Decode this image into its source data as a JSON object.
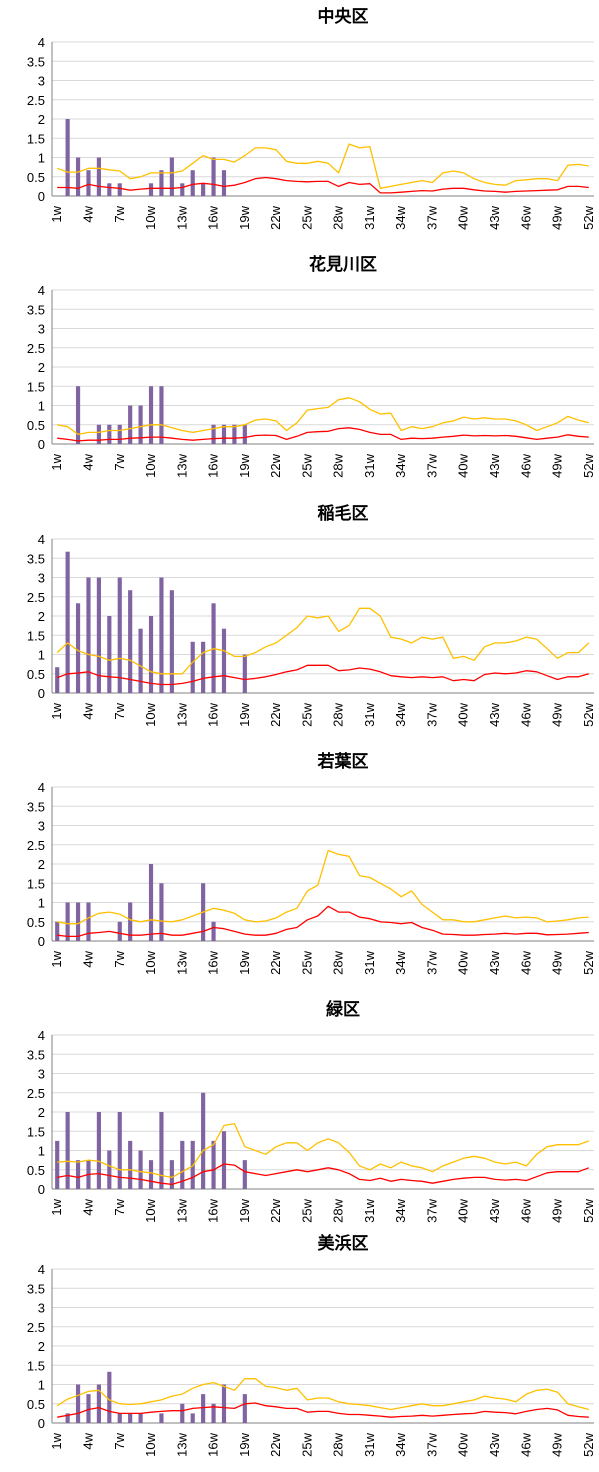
{
  "chart_data": [
    {
      "type": "bar",
      "title": "中央区",
      "ylim": [
        0,
        4
      ],
      "yticks": [
        "0",
        "0.5",
        "1",
        "1.5",
        "2",
        "2.5",
        "3",
        "3.5",
        "4"
      ],
      "grid": true,
      "x_tick_labels": [
        "1w",
        "4w",
        "7w",
        "10w",
        "13w",
        "16w",
        "19w",
        "22w",
        "25w",
        "28w",
        "31w",
        "34w",
        "37w",
        "40w",
        "43w",
        "46w",
        "49w",
        "52w"
      ],
      "bar_color": "#8064a2",
      "bars": [
        0,
        2,
        1,
        0.67,
        1,
        0.33,
        0.33,
        0,
        0,
        0.33,
        0.67,
        1,
        0.33,
        0.67,
        0.33,
        1,
        0.67,
        0,
        0,
        0,
        0,
        0,
        0,
        0,
        0,
        0,
        0,
        0,
        0,
        0,
        0,
        0,
        0,
        0,
        0,
        0,
        0,
        0,
        0,
        0,
        0,
        0,
        0,
        0,
        0,
        0,
        0,
        0,
        0,
        0,
        0,
        0
      ],
      "series": [
        {
          "color": "#ffc000",
          "values": [
            0.72,
            0.62,
            0.62,
            0.72,
            0.72,
            0.68,
            0.65,
            0.45,
            0.5,
            0.6,
            0.6,
            0.6,
            0.65,
            0.85,
            1.05,
            0.95,
            0.95,
            0.88,
            1.05,
            1.25,
            1.25,
            1.2,
            0.9,
            0.85,
            0.85,
            0.9,
            0.85,
            0.6,
            1.35,
            1.25,
            1.28,
            0.2,
            0.25,
            0.3,
            0.35,
            0.4,
            0.35,
            0.6,
            0.65,
            0.6,
            0.45,
            0.35,
            0.3,
            0.28,
            0.4,
            0.42,
            0.45,
            0.45,
            0.4,
            0.8,
            0.82,
            0.78
          ]
        },
        {
          "color": "#ff0000",
          "values": [
            0.22,
            0.22,
            0.2,
            0.3,
            0.25,
            0.22,
            0.2,
            0.15,
            0.18,
            0.2,
            0.2,
            0.2,
            0.22,
            0.3,
            0.33,
            0.3,
            0.25,
            0.28,
            0.35,
            0.45,
            0.48,
            0.45,
            0.4,
            0.38,
            0.37,
            0.38,
            0.38,
            0.25,
            0.35,
            0.3,
            0.32,
            0.08,
            0.08,
            0.1,
            0.12,
            0.14,
            0.13,
            0.18,
            0.2,
            0.2,
            0.16,
            0.13,
            0.12,
            0.1,
            0.12,
            0.13,
            0.14,
            0.15,
            0.16,
            0.25,
            0.25,
            0.22
          ]
        }
      ]
    },
    {
      "type": "bar",
      "title": "花見川区",
      "ylim": [
        0,
        4
      ],
      "yticks": [
        "0",
        "0.5",
        "1",
        "1.5",
        "2",
        "2.5",
        "3",
        "3.5",
        "4"
      ],
      "grid": true,
      "x_tick_labels": [
        "1w",
        "4w",
        "7w",
        "10w",
        "13w",
        "16w",
        "19w",
        "22w",
        "25w",
        "28w",
        "31w",
        "34w",
        "37w",
        "40w",
        "43w",
        "46w",
        "49w",
        "52w"
      ],
      "bar_color": "#8064a2",
      "bars": [
        0,
        0,
        1.5,
        0,
        0.5,
        0.5,
        0.5,
        1,
        1,
        1.5,
        1.5,
        0,
        0,
        0,
        0,
        0.5,
        0.5,
        0.5,
        0.5,
        0,
        0,
        0,
        0,
        0,
        0,
        0,
        0,
        0,
        0,
        0,
        0,
        0,
        0,
        0,
        0,
        0,
        0,
        0,
        0,
        0,
        0,
        0,
        0,
        0,
        0,
        0,
        0,
        0,
        0,
        0,
        0,
        0
      ],
      "series": [
        {
          "color": "#ffc000",
          "values": [
            0.5,
            0.45,
            0.25,
            0.3,
            0.3,
            0.35,
            0.35,
            0.4,
            0.45,
            0.5,
            0.5,
            0.42,
            0.35,
            0.3,
            0.35,
            0.4,
            0.45,
            0.45,
            0.5,
            0.62,
            0.65,
            0.6,
            0.35,
            0.55,
            0.88,
            0.92,
            0.95,
            1.15,
            1.2,
            1.1,
            0.9,
            0.78,
            0.8,
            0.35,
            0.45,
            0.4,
            0.45,
            0.55,
            0.6,
            0.7,
            0.65,
            0.68,
            0.65,
            0.65,
            0.6,
            0.5,
            0.35,
            0.45,
            0.55,
            0.72,
            0.62,
            0.55
          ]
        },
        {
          "color": "#ff0000",
          "values": [
            0.15,
            0.12,
            0.08,
            0.1,
            0.1,
            0.12,
            0.12,
            0.15,
            0.16,
            0.18,
            0.18,
            0.15,
            0.12,
            0.1,
            0.12,
            0.14,
            0.15,
            0.15,
            0.17,
            0.22,
            0.23,
            0.22,
            0.12,
            0.2,
            0.3,
            0.32,
            0.33,
            0.4,
            0.42,
            0.38,
            0.3,
            0.25,
            0.25,
            0.12,
            0.15,
            0.14,
            0.15,
            0.18,
            0.2,
            0.23,
            0.21,
            0.22,
            0.21,
            0.22,
            0.2,
            0.16,
            0.12,
            0.15,
            0.18,
            0.24,
            0.2,
            0.18
          ]
        }
      ]
    },
    {
      "type": "bar",
      "title": "稲毛区",
      "ylim": [
        0,
        4
      ],
      "yticks": [
        "0",
        "0.5",
        "1",
        "1.5",
        "2",
        "2.5",
        "3",
        "3.5",
        "4"
      ],
      "grid": true,
      "x_tick_labels": [
        "1w",
        "4w",
        "7w",
        "10w",
        "13w",
        "16w",
        "19w",
        "22w",
        "25w",
        "28w",
        "31w",
        "34w",
        "37w",
        "40w",
        "43w",
        "46w",
        "49w",
        "52w"
      ],
      "bar_color": "#8064a2",
      "bars": [
        0.67,
        3.67,
        2.33,
        3,
        3,
        2,
        3,
        2.67,
        1.67,
        2,
        3,
        2.67,
        0,
        1.33,
        1.33,
        2.33,
        1.67,
        0,
        1,
        0,
        0,
        0,
        0,
        0,
        0,
        0,
        0,
        0,
        0,
        0,
        0,
        0,
        0,
        0,
        0,
        0,
        0,
        0,
        0,
        0,
        0,
        0,
        0,
        0,
        0,
        0,
        0,
        0,
        0,
        0,
        0,
        0
      ],
      "series": [
        {
          "color": "#ffc000",
          "values": [
            1.05,
            1.3,
            1.1,
            1.0,
            0.95,
            0.85,
            0.9,
            0.85,
            0.7,
            0.55,
            0.5,
            0.5,
            0.5,
            0.8,
            1.05,
            1.15,
            1.1,
            0.95,
            0.95,
            1.05,
            1.2,
            1.3,
            1.5,
            1.7,
            2.0,
            1.95,
            2.0,
            1.6,
            1.75,
            2.2,
            2.2,
            2.0,
            1.45,
            1.4,
            1.3,
            1.45,
            1.4,
            1.45,
            0.9,
            0.95,
            0.85,
            1.2,
            1.3,
            1.3,
            1.35,
            1.45,
            1.4,
            1.15,
            0.9,
            1.05,
            1.05,
            1.3
          ]
        },
        {
          "color": "#ff0000",
          "values": [
            0.4,
            0.5,
            0.52,
            0.55,
            0.45,
            0.42,
            0.4,
            0.35,
            0.3,
            0.25,
            0.22,
            0.22,
            0.25,
            0.3,
            0.38,
            0.42,
            0.45,
            0.4,
            0.35,
            0.38,
            0.42,
            0.48,
            0.55,
            0.6,
            0.72,
            0.72,
            0.72,
            0.58,
            0.6,
            0.65,
            0.62,
            0.55,
            0.45,
            0.42,
            0.4,
            0.42,
            0.4,
            0.42,
            0.32,
            0.35,
            0.32,
            0.48,
            0.52,
            0.5,
            0.52,
            0.58,
            0.55,
            0.45,
            0.35,
            0.42,
            0.42,
            0.5
          ]
        }
      ]
    },
    {
      "type": "bar",
      "title": "若葉区",
      "ylim": [
        0,
        4
      ],
      "yticks": [
        "0",
        "0.5",
        "1",
        "1.5",
        "2",
        "2.5",
        "3",
        "3.5",
        "4"
      ],
      "grid": true,
      "x_tick_labels": [
        "1w",
        "4w",
        "7w",
        "10w",
        "13w",
        "16w",
        "19w",
        "22w",
        "25w",
        "28w",
        "31w",
        "34w",
        "37w",
        "40w",
        "43w",
        "46w",
        "49w",
        "52w"
      ],
      "bar_color": "#8064a2",
      "bars": [
        0.5,
        1,
        1,
        1,
        0,
        0,
        0.5,
        1,
        0,
        2,
        1.5,
        0,
        0,
        0,
        1.5,
        0.5,
        0,
        0,
        0,
        0,
        0,
        0,
        0,
        0,
        0,
        0,
        0,
        0,
        0,
        0,
        0,
        0,
        0,
        0,
        0,
        0,
        0,
        0,
        0,
        0,
        0,
        0,
        0,
        0,
        0,
        0,
        0,
        0,
        0,
        0,
        0,
        0
      ],
      "series": [
        {
          "color": "#ffc000",
          "values": [
            0.5,
            0.45,
            0.45,
            0.6,
            0.72,
            0.75,
            0.7,
            0.55,
            0.5,
            0.55,
            0.52,
            0.5,
            0.55,
            0.65,
            0.75,
            0.85,
            0.8,
            0.72,
            0.55,
            0.5,
            0.52,
            0.6,
            0.75,
            0.85,
            1.3,
            1.45,
            2.35,
            2.25,
            2.2,
            1.7,
            1.65,
            1.5,
            1.35,
            1.15,
            1.3,
            0.95,
            0.75,
            0.55,
            0.55,
            0.5,
            0.5,
            0.55,
            0.6,
            0.65,
            0.6,
            0.62,
            0.6,
            0.5,
            0.52,
            0.55,
            0.6,
            0.62
          ]
        },
        {
          "color": "#ff0000",
          "values": [
            0.15,
            0.12,
            0.12,
            0.2,
            0.22,
            0.25,
            0.2,
            0.15,
            0.15,
            0.18,
            0.2,
            0.15,
            0.15,
            0.2,
            0.25,
            0.35,
            0.32,
            0.25,
            0.18,
            0.15,
            0.15,
            0.2,
            0.3,
            0.35,
            0.55,
            0.65,
            0.9,
            0.75,
            0.75,
            0.62,
            0.58,
            0.5,
            0.48,
            0.45,
            0.48,
            0.35,
            0.28,
            0.18,
            0.17,
            0.15,
            0.15,
            0.17,
            0.18,
            0.2,
            0.18,
            0.2,
            0.2,
            0.16,
            0.17,
            0.18,
            0.2,
            0.22
          ]
        }
      ]
    },
    {
      "type": "bar",
      "title": "緑区",
      "ylim": [
        0,
        4
      ],
      "yticks": [
        "0",
        "0.5",
        "1",
        "1.5",
        "2",
        "2.5",
        "3",
        "3.5",
        "4"
      ],
      "grid": true,
      "x_tick_labels": [
        "1w",
        "4w",
        "7w",
        "10w",
        "13w",
        "16w",
        "19w",
        "22w",
        "25w",
        "28w",
        "31w",
        "34w",
        "37w",
        "40w",
        "43w",
        "46w",
        "49w",
        "52w"
      ],
      "bar_color": "#8064a2",
      "bars": [
        1.25,
        2,
        0.75,
        0.75,
        2,
        1,
        2,
        1.25,
        1,
        0.75,
        2,
        0.75,
        1.25,
        1.25,
        2.5,
        1.25,
        1.5,
        0,
        0.75,
        0,
        0,
        0,
        0,
        0,
        0,
        0,
        0,
        0,
        0,
        0,
        0,
        0,
        0,
        0,
        0,
        0,
        0,
        0,
        0,
        0,
        0,
        0,
        0,
        0,
        0,
        0,
        0,
        0,
        0,
        0,
        0,
        0
      ],
      "series": [
        {
          "color": "#ffc000",
          "values": [
            0.7,
            0.72,
            0.7,
            0.75,
            0.72,
            0.6,
            0.5,
            0.5,
            0.45,
            0.42,
            0.35,
            0.3,
            0.45,
            0.6,
            1.0,
            1.15,
            1.65,
            1.7,
            1.1,
            1.0,
            0.9,
            1.1,
            1.2,
            1.2,
            1.0,
            1.2,
            1.3,
            1.2,
            0.95,
            0.6,
            0.5,
            0.65,
            0.55,
            0.7,
            0.6,
            0.55,
            0.45,
            0.6,
            0.7,
            0.8,
            0.85,
            0.8,
            0.7,
            0.65,
            0.7,
            0.6,
            0.9,
            1.1,
            1.15,
            1.15,
            1.15,
            1.25
          ]
        },
        {
          "color": "#ff0000",
          "values": [
            0.3,
            0.35,
            0.3,
            0.38,
            0.4,
            0.35,
            0.3,
            0.28,
            0.25,
            0.2,
            0.15,
            0.12,
            0.2,
            0.3,
            0.45,
            0.5,
            0.65,
            0.62,
            0.45,
            0.4,
            0.35,
            0.4,
            0.45,
            0.5,
            0.45,
            0.5,
            0.55,
            0.5,
            0.4,
            0.25,
            0.22,
            0.28,
            0.2,
            0.25,
            0.22,
            0.2,
            0.15,
            0.2,
            0.25,
            0.28,
            0.3,
            0.3,
            0.25,
            0.23,
            0.25,
            0.22,
            0.32,
            0.42,
            0.45,
            0.45,
            0.45,
            0.55
          ]
        }
      ]
    },
    {
      "type": "bar",
      "title": "美浜区",
      "ylim": [
        0,
        4
      ],
      "yticks": [
        "0",
        "0.5",
        "1",
        "1.5",
        "2",
        "2.5",
        "3",
        "3.5",
        "4"
      ],
      "grid": true,
      "x_tick_labels": [
        "1w",
        "4w",
        "7w",
        "10w",
        "13w",
        "16w",
        "19w",
        "22w",
        "25w",
        "28w",
        "31w",
        "34w",
        "37w",
        "40w",
        "43w",
        "46w",
        "49w",
        "52w"
      ],
      "bar_color": "#8064a2",
      "bars": [
        0,
        0.25,
        1,
        0.75,
        1,
        1.33,
        0.25,
        0.25,
        0.25,
        0,
        0.25,
        0,
        0.5,
        0.25,
        0.75,
        0.5,
        1,
        0,
        0.75,
        0,
        0,
        0,
        0,
        0,
        0,
        0,
        0,
        0,
        0,
        0,
        0,
        0,
        0,
        0,
        0,
        0,
        0,
        0,
        0,
        0,
        0,
        0,
        0,
        0,
        0,
        0,
        0,
        0,
        0,
        0,
        0,
        0
      ],
      "series": [
        {
          "color": "#ffc000",
          "values": [
            0.45,
            0.62,
            0.72,
            0.82,
            0.85,
            0.6,
            0.5,
            0.48,
            0.5,
            0.55,
            0.6,
            0.7,
            0.75,
            0.9,
            1.0,
            1.05,
            0.95,
            0.85,
            1.15,
            1.15,
            0.95,
            0.92,
            0.85,
            0.9,
            0.6,
            0.65,
            0.65,
            0.55,
            0.5,
            0.48,
            0.45,
            0.4,
            0.35,
            0.4,
            0.45,
            0.5,
            0.45,
            0.45,
            0.5,
            0.55,
            0.6,
            0.7,
            0.65,
            0.62,
            0.55,
            0.75,
            0.85,
            0.88,
            0.8,
            0.5,
            0.42,
            0.35
          ]
        },
        {
          "color": "#ff0000",
          "values": [
            0.15,
            0.2,
            0.25,
            0.35,
            0.4,
            0.3,
            0.25,
            0.25,
            0.25,
            0.28,
            0.3,
            0.32,
            0.32,
            0.38,
            0.4,
            0.42,
            0.4,
            0.38,
            0.5,
            0.52,
            0.45,
            0.42,
            0.38,
            0.38,
            0.28,
            0.3,
            0.3,
            0.25,
            0.22,
            0.22,
            0.2,
            0.18,
            0.15,
            0.17,
            0.18,
            0.2,
            0.18,
            0.2,
            0.22,
            0.24,
            0.25,
            0.3,
            0.28,
            0.27,
            0.24,
            0.3,
            0.35,
            0.38,
            0.34,
            0.2,
            0.17,
            0.15
          ]
        }
      ]
    }
  ]
}
